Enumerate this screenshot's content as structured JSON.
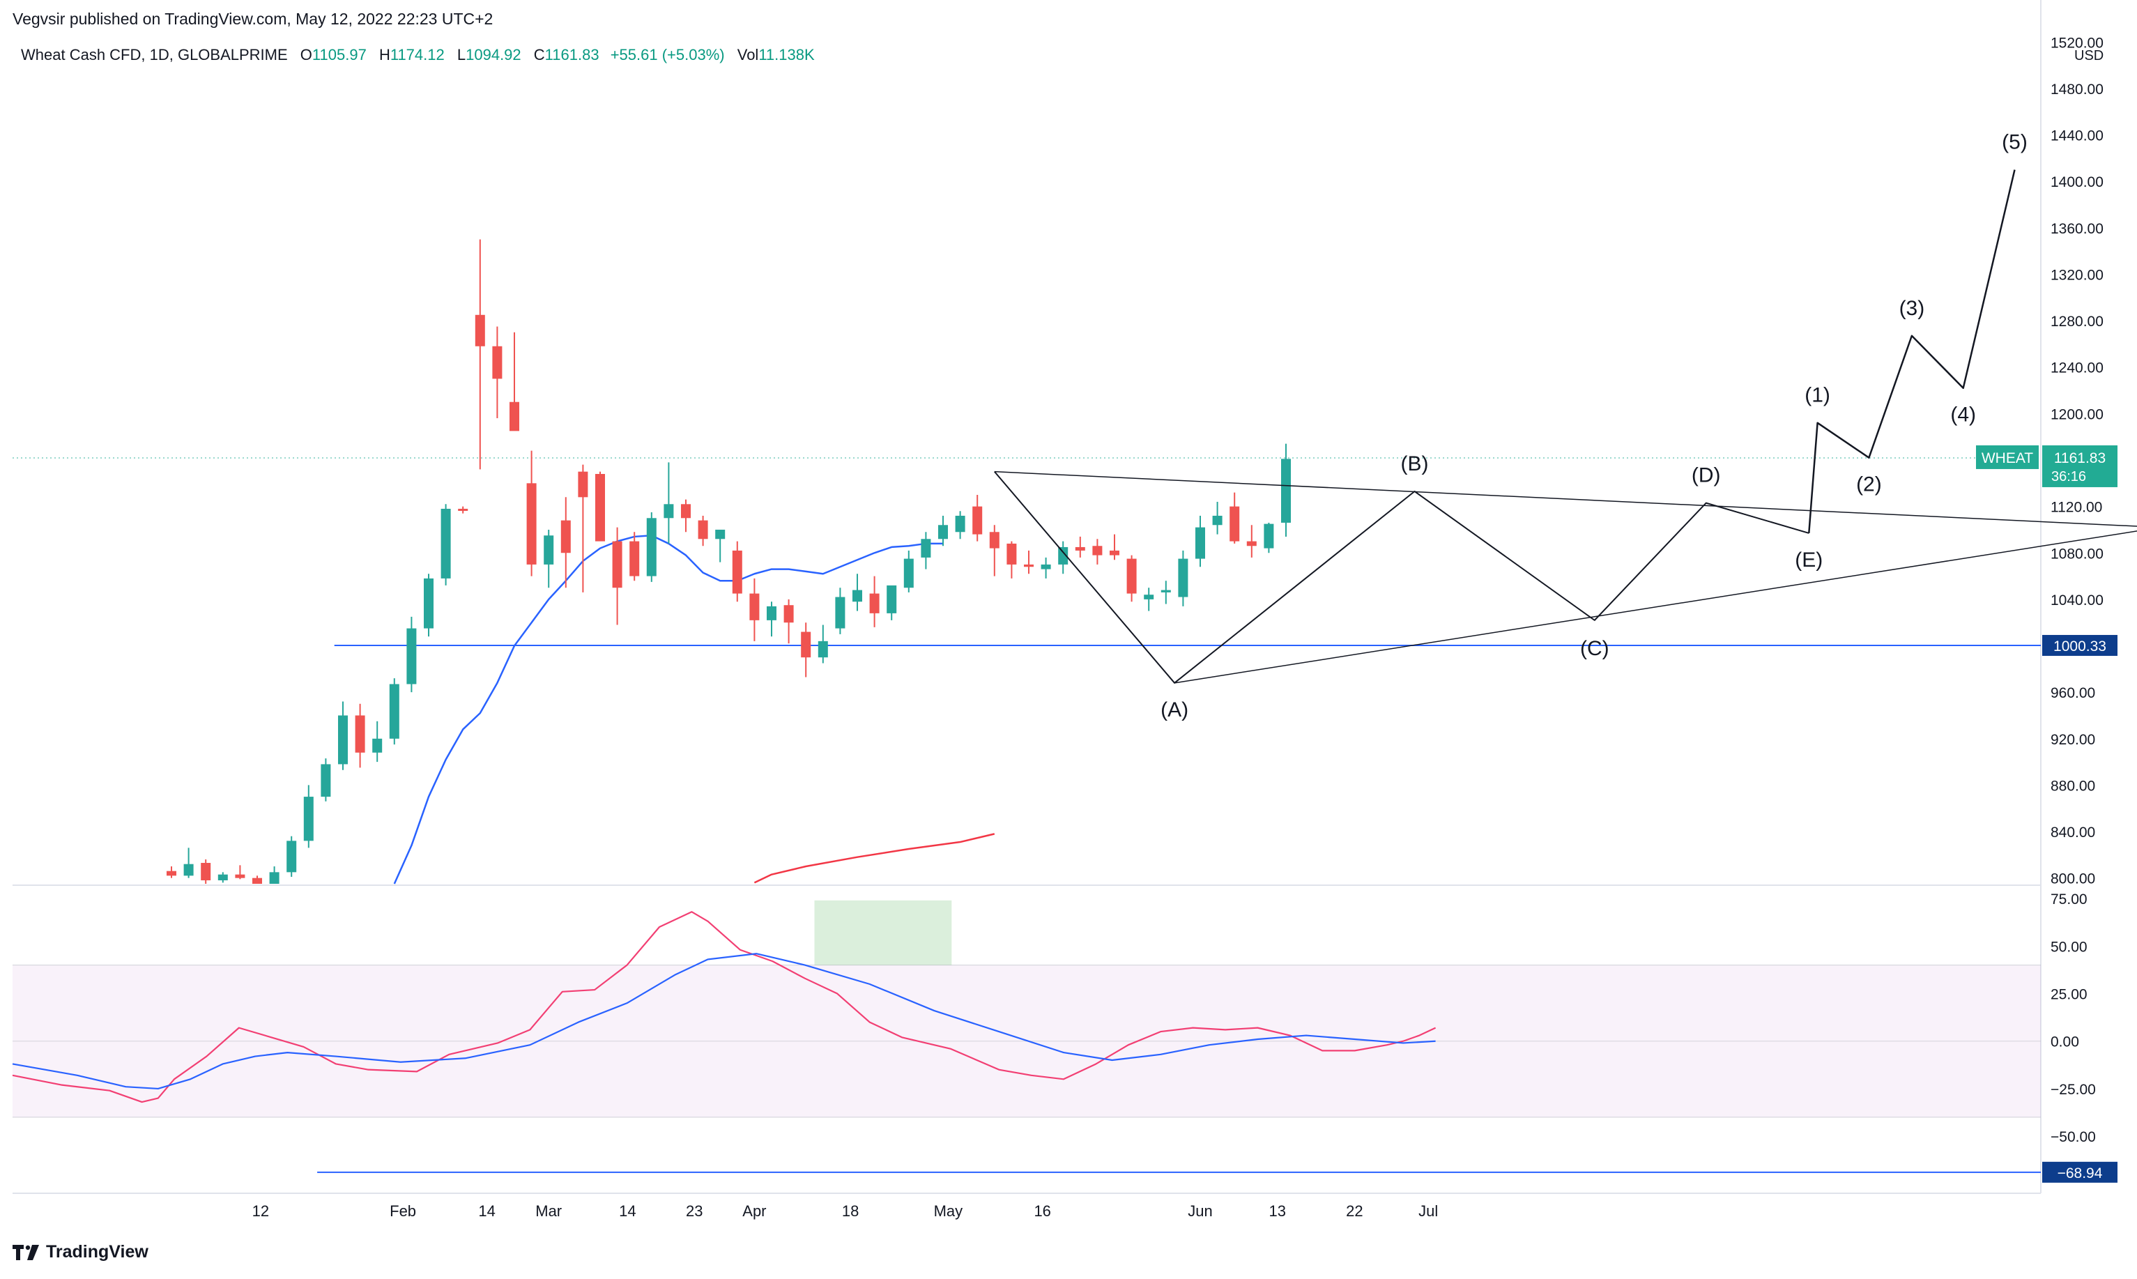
{
  "published_line": "Vegvsir published on TradingView.com, May 12, 2022 22:23 UTC+2",
  "legend": {
    "symbol": "Wheat Cash CFD, 1D, GLOBALPRIME",
    "open_label": "O",
    "open": "1105.97",
    "high_label": "H",
    "high": "1174.12",
    "low_label": "L",
    "low": "1094.92",
    "close_label": "C",
    "close": "1161.83",
    "change": "+55.61 (+5.03%)",
    "vol_label": "Vol",
    "vol": "11.138K"
  },
  "footer": {
    "brand": "TradingView",
    "logo_icon": "tradingview-logo-icon"
  },
  "colors": {
    "up": "#26a69a",
    "down": "#ef5350",
    "ma_blue": "#2962ff",
    "ma_red": "#f23645",
    "rsi": "#f23f73",
    "rsi_ma": "#2962ff",
    "label_blue": "#0d3d8c",
    "wheat_badge": "#22ab94"
  },
  "chart_data": [
    {
      "type": "candlestick",
      "currency": "USD",
      "y_ticks": [
        "800.00",
        "840.00",
        "880.00",
        "920.00",
        "960.00",
        "1000.00",
        "1040.00",
        "1080.00",
        "1120.00",
        "1160.00",
        "1200.00",
        "1240.00",
        "1280.00",
        "1320.00",
        "1360.00",
        "1400.00",
        "1440.00",
        "1480.00",
        "1520.00"
      ],
      "ylim": [
        795,
        1525
      ],
      "x_ticks": [
        "12",
        "Feb",
        "14",
        "Mar",
        "14",
        "23",
        "Apr",
        "18",
        "May",
        "16",
        "Jun",
        "13",
        "22",
        "Jul"
      ],
      "price_badge": {
        "symbol": "WHEAT",
        "value": "1161.83",
        "countdown": "36:16"
      },
      "horizontal_line": {
        "value": 1000.33,
        "label": "1000.33"
      },
      "candles": [
        [
          0,
          806,
          810,
          800,
          802
        ],
        [
          1,
          802,
          826,
          800,
          812
        ],
        [
          2,
          813,
          816,
          790,
          798
        ],
        [
          3,
          798,
          805,
          796,
          803
        ],
        [
          4,
          803,
          811,
          799,
          800
        ],
        [
          5,
          800,
          802,
          791,
          795
        ],
        [
          6,
          795,
          810,
          790,
          805
        ],
        [
          7,
          805,
          836,
          801,
          832
        ],
        [
          8,
          832,
          880,
          826,
          870
        ],
        [
          9,
          870,
          903,
          866,
          898
        ],
        [
          10,
          898,
          952,
          893,
          940
        ],
        [
          11,
          940,
          950,
          895,
          908
        ],
        [
          12,
          908,
          935,
          900,
          920
        ],
        [
          13,
          920,
          972,
          915,
          967
        ],
        [
          14,
          967,
          1025,
          960,
          1015
        ],
        [
          15,
          1015,
          1062,
          1008,
          1058
        ],
        [
          16,
          1058,
          1122,
          1052,
          1118
        ],
        [
          17,
          1118,
          1120,
          1114,
          1117
        ],
        [
          18,
          1285,
          1350,
          1152,
          1258
        ],
        [
          19,
          1258,
          1275,
          1196,
          1230
        ],
        [
          20,
          1210,
          1270,
          1190,
          1185
        ],
        [
          21,
          1140,
          1168,
          1060,
          1070
        ],
        [
          22,
          1070,
          1100,
          1050,
          1095
        ],
        [
          23,
          1108,
          1128,
          1050,
          1080
        ],
        [
          24,
          1150,
          1156,
          1046,
          1128
        ],
        [
          25,
          1148,
          1150,
          1092,
          1090
        ],
        [
          26,
          1090,
          1102,
          1018,
          1050
        ],
        [
          27,
          1090,
          1098,
          1056,
          1060
        ],
        [
          28,
          1060,
          1115,
          1055,
          1110
        ],
        [
          29,
          1110,
          1158,
          1088,
          1122
        ],
        [
          30,
          1122,
          1126,
          1098,
          1110
        ],
        [
          31,
          1108,
          1112,
          1086,
          1092
        ],
        [
          32,
          1092,
          1096,
          1072,
          1100
        ],
        [
          33,
          1082,
          1090,
          1038,
          1045
        ],
        [
          34,
          1045,
          1058,
          1004,
          1022
        ],
        [
          35,
          1022,
          1038,
          1008,
          1034
        ],
        [
          36,
          1035,
          1040,
          1002,
          1020
        ],
        [
          37,
          1012,
          1020,
          973,
          990
        ],
        [
          38,
          990,
          1018,
          985,
          1004
        ],
        [
          39,
          1015,
          1050,
          1010,
          1042
        ],
        [
          40,
          1038,
          1062,
          1030,
          1048
        ],
        [
          41,
          1045,
          1060,
          1016,
          1028
        ],
        [
          42,
          1028,
          1050,
          1022,
          1052
        ],
        [
          43,
          1050,
          1082,
          1046,
          1075
        ],
        [
          44,
          1076,
          1098,
          1066,
          1092
        ],
        [
          45,
          1092,
          1112,
          1086,
          1104
        ],
        [
          46,
          1098,
          1116,
          1092,
          1112
        ],
        [
          47,
          1120,
          1130,
          1090,
          1096
        ],
        [
          48,
          1098,
          1104,
          1060,
          1084
        ],
        [
          49,
          1088,
          1090,
          1058,
          1070
        ],
        [
          50,
          1070,
          1082,
          1062,
          1068
        ],
        [
          51,
          1066,
          1076,
          1058,
          1070
        ],
        [
          52,
          1070,
          1090,
          1062,
          1085
        ],
        [
          53,
          1085,
          1094,
          1076,
          1082
        ],
        [
          54,
          1086,
          1092,
          1070,
          1078
        ],
        [
          55,
          1082,
          1096,
          1074,
          1078
        ],
        [
          56,
          1075,
          1078,
          1038,
          1045
        ],
        [
          57,
          1040,
          1050,
          1030,
          1044
        ],
        [
          58,
          1046,
          1056,
          1036,
          1048
        ],
        [
          59,
          1042,
          1082,
          1034,
          1075
        ],
        [
          60,
          1075,
          1112,
          1068,
          1102
        ],
        [
          61,
          1104,
          1124,
          1096,
          1112
        ],
        [
          62,
          1120,
          1132,
          1088,
          1090
        ],
        [
          63,
          1090,
          1104,
          1076,
          1086
        ],
        [
          64,
          1084,
          1106,
          1080,
          1105
        ],
        [
          65,
          1106,
          1174,
          1094,
          1161
        ]
      ],
      "ma_blue": [
        [
          26,
          793
        ],
        [
          28,
          828
        ],
        [
          30,
          870
        ],
        [
          32,
          902
        ],
        [
          34,
          928
        ],
        [
          36,
          942
        ],
        [
          38,
          968
        ],
        [
          40,
          1000
        ],
        [
          42,
          1020
        ],
        [
          44,
          1040
        ],
        [
          46,
          1056
        ],
        [
          48,
          1073
        ],
        [
          50,
          1084
        ],
        [
          52,
          1090
        ],
        [
          54,
          1094
        ],
        [
          56,
          1095
        ],
        [
          58,
          1088
        ],
        [
          60,
          1078
        ],
        [
          62,
          1063
        ],
        [
          64,
          1056
        ],
        [
          66,
          1056
        ],
        [
          68,
          1062
        ],
        [
          70,
          1066
        ],
        [
          72,
          1066
        ],
        [
          74,
          1064
        ],
        [
          76,
          1062
        ],
        [
          78,
          1068
        ],
        [
          80,
          1074
        ],
        [
          82,
          1080
        ],
        [
          84,
          1085
        ],
        [
          86,
          1086
        ],
        [
          88,
          1088
        ],
        [
          90,
          1088
        ]
      ],
      "ma_red": [
        [
          60,
          796
        ],
        [
          62,
          803
        ],
        [
          66,
          810
        ],
        [
          72,
          818
        ],
        [
          78,
          825
        ],
        [
          84,
          831
        ],
        [
          88,
          838
        ]
      ],
      "wave_labels": [
        "(A)",
        "(B)",
        "(C)",
        "(D)",
        "(E)",
        "(1)",
        "(2)",
        "(3)",
        "(4)",
        "(5)"
      ],
      "wave_points": {
        "abcde": [
          [
            48,
            1150
          ],
          [
            58.5,
            968
          ],
          [
            72.5,
            1133
          ],
          [
            83,
            1022
          ],
          [
            89.5,
            1123
          ],
          [
            95.5,
            1097
          ]
        ],
        "impulse": [
          [
            95.5,
            1097
          ],
          [
            96,
            1192
          ],
          [
            99,
            1162
          ],
          [
            101.5,
            1267
          ],
          [
            104.5,
            1222
          ],
          [
            107.5,
            1410
          ]
        ]
      },
      "triangle": {
        "upper": [
          [
            48,
            1150
          ],
          [
            116,
            1102
          ]
        ],
        "lower": [
          [
            58.5,
            968
          ],
          [
            116,
            1102
          ]
        ]
      }
    },
    {
      "type": "line",
      "y_ticks": [
        "75.00",
        "50.00",
        "25.00",
        "0.00",
        "−25.00",
        "−50.00"
      ],
      "ylim": [
        -80,
        82
      ],
      "band": [
        -40,
        40
      ],
      "highlight": {
        "x": [
          38,
          46
        ],
        "y": [
          40,
          74
        ]
      },
      "value_badge": {
        "label": "−68.94",
        "value": -68.94
      },
      "series": [
        {
          "values": [
            [
              0,
              -18
            ],
            [
              3,
              -23
            ],
            [
              6,
              -26
            ],
            [
              8,
              -32
            ],
            [
              9,
              -30
            ],
            [
              10,
              -20
            ],
            [
              12,
              -8
            ],
            [
              14,
              7
            ],
            [
              16,
              2
            ],
            [
              18,
              -3
            ],
            [
              20,
              -12
            ],
            [
              22,
              -15
            ],
            [
              25,
              -16
            ],
            [
              27,
              -7
            ],
            [
              30,
              -1
            ],
            [
              32,
              6
            ],
            [
              34,
              26
            ],
            [
              36,
              27
            ],
            [
              38,
              40
            ],
            [
              40,
              60
            ],
            [
              42,
              68
            ],
            [
              43,
              63
            ],
            [
              45,
              48
            ],
            [
              47,
              42
            ],
            [
              49,
              33
            ],
            [
              51,
              25
            ],
            [
              53,
              10
            ],
            [
              55,
              2
            ],
            [
              58,
              -4
            ],
            [
              61,
              -15
            ],
            [
              63,
              -18
            ],
            [
              65,
              -20
            ],
            [
              67,
              -12
            ],
            [
              69,
              -2
            ],
            [
              71,
              5
            ],
            [
              73,
              7
            ],
            [
              75,
              6
            ],
            [
              77,
              7
            ],
            [
              79,
              3
            ],
            [
              81,
              -5
            ],
            [
              83,
              -5
            ],
            [
              85,
              -2
            ],
            [
              86,
              0
            ],
            [
              87,
              3
            ],
            [
              88,
              7
            ]
          ]
        },
        {
          "values": [
            [
              0,
              -12
            ],
            [
              4,
              -18
            ],
            [
              7,
              -24
            ],
            [
              9,
              -25
            ],
            [
              11,
              -20
            ],
            [
              13,
              -12
            ],
            [
              15,
              -8
            ],
            [
              17,
              -6
            ],
            [
              20,
              -8
            ],
            [
              24,
              -11
            ],
            [
              28,
              -9
            ],
            [
              32,
              -2
            ],
            [
              35,
              10
            ],
            [
              38,
              20
            ],
            [
              41,
              35
            ],
            [
              43,
              43
            ],
            [
              46,
              46
            ],
            [
              49,
              40
            ],
            [
              53,
              30
            ],
            [
              57,
              16
            ],
            [
              61,
              5
            ],
            [
              65,
              -6
            ],
            [
              68,
              -10
            ],
            [
              71,
              -7
            ],
            [
              74,
              -2
            ],
            [
              77,
              1
            ],
            [
              80,
              3
            ],
            [
              83,
              1
            ],
            [
              86,
              -1
            ],
            [
              88,
              0
            ]
          ]
        }
      ]
    }
  ]
}
